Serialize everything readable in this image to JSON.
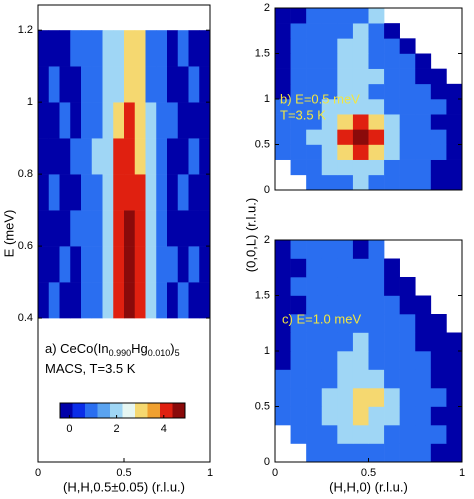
{
  "chart_data": [
    {
      "type": "heatmap",
      "xlabel": "(H,H,0.5±0.05) (r.l.u.)",
      "ylabel": "E (meV)",
      "xlim": [
        0,
        1
      ],
      "ylim": [
        0,
        1.27
      ],
      "xticks": [
        0,
        0.5,
        1
      ],
      "yticks": [
        0.4,
        0.6,
        0.8,
        1,
        1.2
      ],
      "xbins": [
        0,
        0.0625,
        0.125,
        0.1875,
        0.25,
        0.3125,
        0.375,
        0.4375,
        0.5,
        0.5625,
        0.625,
        0.6875,
        0.75,
        0.8125,
        0.875,
        0.9375,
        1
      ],
      "ybins": [
        0.4,
        0.5,
        0.6,
        0.7,
        0.8,
        0.9,
        1.0,
        1.1,
        1.2
      ],
      "z": [
        [
          0,
          1,
          0,
          0,
          1,
          1,
          2,
          4,
          5,
          4,
          2,
          1,
          0,
          1,
          0,
          0
        ],
        [
          0,
          0,
          1,
          0,
          1,
          1,
          2,
          4,
          5,
          4,
          2,
          1,
          1,
          0,
          1,
          0
        ],
        [
          0,
          0,
          0,
          1,
          1,
          1,
          2,
          4,
          5,
          4,
          2,
          1,
          0,
          0,
          0,
          0
        ],
        [
          0,
          1,
          0,
          0,
          1,
          1,
          2,
          4,
          4,
          4,
          2,
          1,
          0,
          1,
          0,
          0
        ],
        [
          0,
          0,
          0,
          1,
          1,
          2,
          2,
          4,
          4,
          3,
          2,
          1,
          0,
          0,
          1,
          0
        ],
        [
          0,
          0,
          1,
          0,
          1,
          1,
          2,
          3,
          4,
          3,
          2,
          1,
          1,
          0,
          0,
          0
        ],
        [
          0,
          1,
          0,
          0,
          1,
          1,
          2,
          2,
          3,
          3,
          1,
          1,
          0,
          0,
          1,
          0
        ],
        [
          0,
          0,
          0,
          1,
          1,
          1,
          2,
          2,
          3,
          3,
          1,
          1,
          0,
          1,
          0,
          0
        ]
      ],
      "annotations": [
        [
          "a) CeCo(In",
          "0.990",
          "Hg",
          "0.010",
          ")",
          "5"
        ],
        [
          "MACS, T=3.5 K"
        ]
      ],
      "clim": [
        -0.4,
        4.9
      ],
      "colorscale": [
        "#0000a8",
        "#0a2de8",
        "#2a6ef0",
        "#5aa3f0",
        "#9fd6f5",
        "#e6f6f2",
        "#f5d870",
        "#f0a030",
        "#e02010",
        "#8a0a0a"
      ],
      "cticks": [
        0,
        2,
        4
      ]
    },
    {
      "type": "heatmap",
      "ylabel": "(0,0,L) (r.l.u.)",
      "xlim": [
        0,
        1
      ],
      "ylim": [
        0,
        2
      ],
      "yticks": [
        0,
        0.5,
        1,
        1.5,
        2
      ],
      "xbins": [
        0,
        0.0833,
        0.1667,
        0.25,
        0.3333,
        0.4167,
        0.5,
        0.5833,
        0.6667,
        0.75,
        0.8333,
        0.9167,
        1
      ],
      "ybins": [
        0,
        0.1667,
        0.3333,
        0.5,
        0.6667,
        0.8333,
        1,
        1.1667,
        1.3333,
        1.5,
        1.6667,
        1.8333,
        2
      ],
      "z": [
        [
          null,
          null,
          1,
          1,
          1,
          2,
          1,
          1,
          1,
          1,
          0,
          0
        ],
        [
          null,
          1,
          1,
          2,
          2,
          2,
          2,
          1,
          1,
          1,
          0,
          0
        ],
        [
          1,
          1,
          1,
          2,
          3,
          4,
          3,
          2,
          1,
          1,
          1,
          0
        ],
        [
          1,
          1,
          2,
          2,
          4,
          5,
          4,
          2,
          1,
          1,
          1,
          0
        ],
        [
          1,
          1,
          1,
          2,
          3,
          4,
          3,
          2,
          1,
          1,
          0,
          0
        ],
        [
          1,
          1,
          1,
          2,
          2,
          2,
          2,
          1,
          1,
          1,
          1,
          0
        ],
        [
          0,
          1,
          1,
          1,
          2,
          2,
          1,
          1,
          1,
          1,
          0,
          0
        ],
        [
          0,
          1,
          1,
          1,
          2,
          2,
          2,
          1,
          1,
          0,
          0,
          null
        ],
        [
          0,
          1,
          1,
          1,
          2,
          2,
          1,
          1,
          1,
          0,
          null,
          null
        ],
        [
          0,
          1,
          1,
          1,
          2,
          2,
          1,
          1,
          0,
          null,
          null,
          null
        ],
        [
          0,
          1,
          1,
          1,
          1,
          2,
          1,
          0,
          null,
          null,
          null,
          null
        ],
        [
          0,
          0,
          1,
          1,
          1,
          1,
          2,
          null,
          null,
          null,
          null,
          null
        ]
      ],
      "annotations": [
        "b) E=0.5 meV",
        "T=3.5 K"
      ],
      "annotation_color": "#f2e640"
    },
    {
      "type": "heatmap",
      "xlabel": "(H,H,0) (r.l.u.)",
      "xlim": [
        0,
        1
      ],
      "ylim": [
        0,
        2
      ],
      "xticks": [
        0,
        0.5,
        1
      ],
      "yticks": [
        0,
        0.5,
        1,
        1.5,
        2
      ],
      "xbins": [
        0,
        0.0833,
        0.1667,
        0.25,
        0.3333,
        0.4167,
        0.5,
        0.5833,
        0.6667,
        0.75,
        0.8333,
        0.9167,
        1
      ],
      "ybins": [
        0,
        0.1667,
        0.3333,
        0.5,
        0.6667,
        0.8333,
        1,
        1.1667,
        1.3333,
        1.5,
        1.6667,
        1.8333,
        2
      ],
      "z": [
        [
          null,
          null,
          1,
          1,
          1,
          1,
          1,
          1,
          1,
          1,
          0,
          0
        ],
        [
          null,
          1,
          1,
          1,
          2,
          2,
          2,
          1,
          1,
          1,
          1,
          0
        ],
        [
          1,
          1,
          1,
          2,
          2,
          3,
          2,
          2,
          1,
          1,
          0,
          0
        ],
        [
          1,
          1,
          1,
          2,
          2,
          3,
          3,
          2,
          1,
          1,
          1,
          0
        ],
        [
          1,
          1,
          1,
          1,
          2,
          2,
          2,
          1,
          1,
          1,
          0,
          0
        ],
        [
          0,
          1,
          1,
          1,
          2,
          2,
          1,
          1,
          1,
          1,
          0,
          0
        ],
        [
          0,
          1,
          1,
          1,
          1,
          2,
          1,
          1,
          1,
          0,
          0,
          0
        ],
        [
          0,
          1,
          1,
          1,
          1,
          1,
          1,
          1,
          1,
          0,
          0,
          null
        ],
        [
          0,
          0,
          1,
          1,
          1,
          1,
          1,
          1,
          0,
          0,
          null,
          null
        ],
        [
          0,
          1,
          1,
          1,
          1,
          1,
          1,
          0,
          0,
          null,
          null,
          null
        ],
        [
          0,
          0,
          1,
          1,
          1,
          1,
          1,
          0,
          null,
          null,
          null,
          null
        ],
        [
          0,
          1,
          1,
          1,
          1,
          0,
          1,
          null,
          null,
          null,
          null,
          null
        ]
      ],
      "annotations": [
        "c) E=1.0 meV"
      ],
      "annotation_color": "#f2e640"
    }
  ]
}
